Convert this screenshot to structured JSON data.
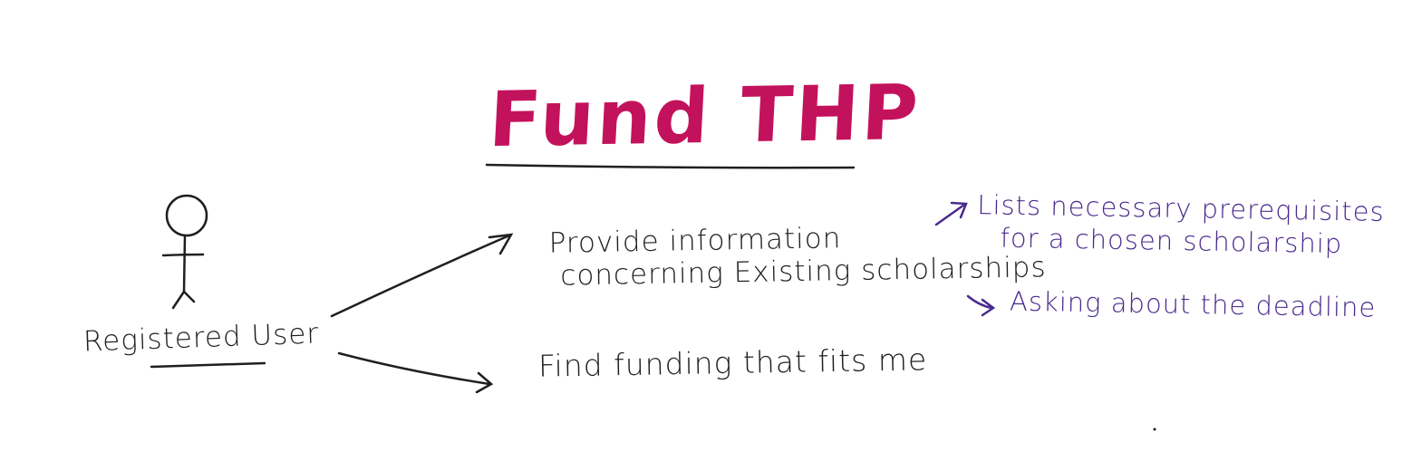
{
  "title": "Fund THP",
  "actor": {
    "label": "Registered User"
  },
  "use_cases": [
    {
      "lines": [
        "Provide information",
        "concerning Existing scholarships"
      ]
    },
    {
      "lines": [
        "Find funding that fits me"
      ]
    }
  ],
  "notes": [
    {
      "lines": [
        "Lists necessary prerequisites",
        "for a chosen scholarship"
      ]
    },
    {
      "lines": [
        "Asking about the deadline"
      ]
    }
  ],
  "colors": {
    "title": "#c3125c",
    "ink": "#1f1f1f",
    "notes": "#4a2a8c"
  }
}
